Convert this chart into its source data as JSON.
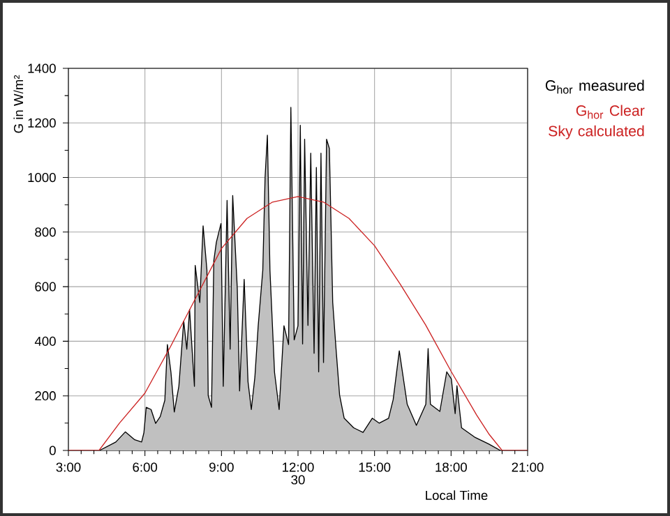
{
  "chart_data": {
    "type": "area",
    "xlabel": "Local Time",
    "ylabel": "G in W/m²",
    "annotations": [
      "30"
    ],
    "xlim": [
      3,
      21
    ],
    "ylim": [
      0,
      1400
    ],
    "xticks": [
      {
        "value": 3,
        "label": "3:00"
      },
      {
        "value": 6,
        "label": "6:00"
      },
      {
        "value": 9,
        "label": "9:00"
      },
      {
        "value": 12,
        "label": "12:00"
      },
      {
        "value": 15,
        "label": "15:00"
      },
      {
        "value": 18,
        "label": "18:00"
      },
      {
        "value": 21,
        "label": "21:00"
      }
    ],
    "yticks": [
      0,
      200,
      400,
      600,
      800,
      1000,
      1200,
      1400
    ],
    "grid": true,
    "legend": "right",
    "series": [
      {
        "name": "G$_{hor}$ measured",
        "color": "#000000",
        "x": [
          4.22,
          4.86,
          5.23,
          5.6,
          5.87,
          5.96,
          6.05,
          6.24,
          6.42,
          6.6,
          6.78,
          6.88,
          7.02,
          7.15,
          7.33,
          7.52,
          7.64,
          7.75,
          7.94,
          7.97,
          8.15,
          8.28,
          8.43,
          8.48,
          8.61,
          8.7,
          8.8,
          8.98,
          9.07,
          9.22,
          9.34,
          9.44,
          9.62,
          9.71,
          9.89,
          10.04,
          10.17,
          10.31,
          10.44,
          10.62,
          10.71,
          10.8,
          10.9,
          11.08,
          11.26,
          11.45,
          11.63,
          11.72,
          11.85,
          12.0,
          12.09,
          12.18,
          12.26,
          12.39,
          12.5,
          12.63,
          12.72,
          12.81,
          12.9,
          13.0,
          13.12,
          13.23,
          13.36,
          13.49,
          13.63,
          13.81,
          14.18,
          14.55,
          14.91,
          15.18,
          15.55,
          15.73,
          15.97,
          16.28,
          16.64,
          17.01,
          17.1,
          17.19,
          17.56,
          17.83,
          18.01,
          18.16,
          18.23,
          18.41,
          18.92,
          19.47,
          19.93
        ],
        "values": [
          0,
          31,
          68,
          39,
          31,
          65,
          158,
          150,
          99,
          124,
          184,
          388,
          286,
          141,
          235,
          474,
          371,
          516,
          235,
          678,
          542,
          823,
          661,
          201,
          158,
          695,
          763,
          831,
          235,
          916,
          371,
          934,
          593,
          218,
          627,
          252,
          150,
          269,
          457,
          661,
          1002,
          1155,
          661,
          286,
          150,
          457,
          388,
          1257,
          405,
          457,
          1191,
          390,
          1140,
          458,
          1089,
          356,
          1037,
          288,
          1089,
          322,
          1140,
          1106,
          543,
          373,
          203,
          118,
          83,
          66,
          118,
          100,
          118,
          186,
          365,
          169,
          92,
          169,
          373,
          169,
          143,
          288,
          262,
          135,
          237,
          83,
          49,
          24,
          0
        ]
      },
      {
        "name": "G$_{hor}$ Clear Sky calculated",
        "type": "line",
        "color": "#cc2222",
        "x": [
          3,
          4.2,
          5,
          6,
          7,
          8,
          9,
          10,
          11,
          12,
          13,
          14,
          15,
          16,
          17,
          18,
          19,
          19.5,
          20,
          21
        ],
        "values": [
          0,
          0,
          100,
          210,
          380,
          560,
          740,
          850,
          910,
          930,
          910,
          850,
          750,
          610,
          460,
          290,
          130,
          58,
          0,
          0
        ]
      }
    ]
  }
}
